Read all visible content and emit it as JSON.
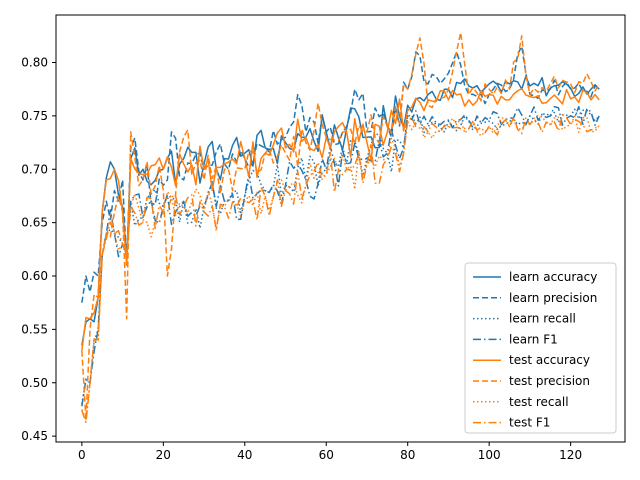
{
  "chart_data": {
    "type": "line",
    "title": "",
    "xlabel": "",
    "ylabel": "",
    "xlim": [
      -6.35,
      133.35
    ],
    "ylim": [
      0.4445,
      0.8445
    ],
    "xticks": [
      0,
      20,
      40,
      60,
      80,
      100,
      120
    ],
    "yticks": [
      0.45,
      0.5,
      0.55,
      0.6,
      0.65,
      0.7,
      0.75,
      0.8
    ],
    "legend": "lower-right",
    "grid": false,
    "colors": {
      "learn": "#1f77b4",
      "test": "#ff7f0e"
    },
    "anchors": {
      "learn accuracy": [
        [
          0,
          0.535
        ],
        [
          2,
          0.56
        ],
        [
          4,
          0.58
        ],
        [
          5,
          0.66
        ],
        [
          6,
          0.692
        ],
        [
          8,
          0.7
        ],
        [
          10,
          0.665
        ],
        [
          11,
          0.615
        ],
        [
          12,
          0.71
        ],
        [
          15,
          0.7
        ],
        [
          20,
          0.7
        ],
        [
          25,
          0.71
        ],
        [
          30,
          0.705
        ],
        [
          35,
          0.71
        ],
        [
          40,
          0.715
        ],
        [
          45,
          0.72
        ],
        [
          50,
          0.725
        ],
        [
          55,
          0.73
        ],
        [
          60,
          0.735
        ],
        [
          65,
          0.738
        ],
        [
          70,
          0.73
        ],
        [
          75,
          0.74
        ],
        [
          80,
          0.76
        ],
        [
          85,
          0.77
        ],
        [
          90,
          0.775
        ],
        [
          95,
          0.778
        ],
        [
          100,
          0.78
        ],
        [
          105,
          0.78
        ],
        [
          110,
          0.778
        ],
        [
          115,
          0.776
        ],
        [
          120,
          0.776
        ],
        [
          125,
          0.775
        ],
        [
          127,
          0.775
        ]
      ],
      "learn precision": [
        [
          0,
          0.575
        ],
        [
          1,
          0.6
        ],
        [
          2,
          0.585
        ],
        [
          4,
          0.6
        ],
        [
          5,
          0.65
        ],
        [
          6,
          0.67
        ],
        [
          8,
          0.68
        ],
        [
          10,
          0.69
        ],
        [
          11,
          0.61
        ],
        [
          12,
          0.72
        ],
        [
          15,
          0.69
        ],
        [
          20,
          0.685
        ],
        [
          22,
          0.735
        ],
        [
          25,
          0.69
        ],
        [
          30,
          0.7
        ],
        [
          35,
          0.705
        ],
        [
          40,
          0.71
        ],
        [
          45,
          0.72
        ],
        [
          50,
          0.73
        ],
        [
          54,
          0.76
        ],
        [
          55,
          0.735
        ],
        [
          60,
          0.735
        ],
        [
          65,
          0.74
        ],
        [
          68,
          0.765
        ],
        [
          70,
          0.735
        ],
        [
          75,
          0.74
        ],
        [
          80,
          0.775
        ],
        [
          82,
          0.81
        ],
        [
          85,
          0.78
        ],
        [
          90,
          0.79
        ],
        [
          92,
          0.81
        ],
        [
          95,
          0.77
        ],
        [
          100,
          0.77
        ],
        [
          105,
          0.775
        ],
        [
          108,
          0.815
        ],
        [
          110,
          0.77
        ],
        [
          115,
          0.775
        ],
        [
          120,
          0.775
        ],
        [
          127,
          0.775
        ]
      ],
      "learn recall": [
        [
          0,
          0.48
        ],
        [
          2,
          0.5
        ],
        [
          4,
          0.55
        ],
        [
          5,
          0.62
        ],
        [
          6,
          0.64
        ],
        [
          8,
          0.64
        ],
        [
          10,
          0.63
        ],
        [
          11,
          0.62
        ],
        [
          12,
          0.67
        ],
        [
          15,
          0.655
        ],
        [
          20,
          0.665
        ],
        [
          25,
          0.67
        ],
        [
          30,
          0.665
        ],
        [
          35,
          0.67
        ],
        [
          40,
          0.675
        ],
        [
          45,
          0.68
        ],
        [
          50,
          0.685
        ],
        [
          55,
          0.69
        ],
        [
          60,
          0.7
        ],
        [
          65,
          0.705
        ],
        [
          70,
          0.71
        ],
        [
          75,
          0.715
        ],
        [
          79,
          0.72
        ],
        [
          80,
          0.75
        ],
        [
          85,
          0.74
        ],
        [
          90,
          0.745
        ],
        [
          95,
          0.745
        ],
        [
          100,
          0.745
        ],
        [
          105,
          0.745
        ],
        [
          110,
          0.75
        ],
        [
          115,
          0.75
        ],
        [
          120,
          0.75
        ],
        [
          127,
          0.75
        ]
      ],
      "learn F1": [
        [
          0,
          0.478
        ],
        [
          2,
          0.5
        ],
        [
          4,
          0.55
        ],
        [
          5,
          0.62
        ],
        [
          6,
          0.64
        ],
        [
          8,
          0.64
        ],
        [
          10,
          0.63
        ],
        [
          11,
          0.62
        ],
        [
          12,
          0.67
        ],
        [
          15,
          0.655
        ],
        [
          20,
          0.665
        ],
        [
          25,
          0.67
        ],
        [
          30,
          0.665
        ],
        [
          35,
          0.67
        ],
        [
          40,
          0.675
        ],
        [
          45,
          0.68
        ],
        [
          50,
          0.685
        ],
        [
          55,
          0.69
        ],
        [
          60,
          0.7
        ],
        [
          65,
          0.705
        ],
        [
          70,
          0.71
        ],
        [
          75,
          0.715
        ],
        [
          79,
          0.72
        ],
        [
          80,
          0.75
        ],
        [
          85,
          0.742
        ],
        [
          90,
          0.746
        ],
        [
          95,
          0.746
        ],
        [
          100,
          0.746
        ],
        [
          105,
          0.748
        ],
        [
          110,
          0.75
        ],
        [
          115,
          0.75
        ],
        [
          120,
          0.75
        ],
        [
          127,
          0.75
        ]
      ],
      "test accuracy": [
        [
          0,
          0.53
        ],
        [
          2,
          0.56
        ],
        [
          4,
          0.58
        ],
        [
          5,
          0.66
        ],
        [
          6,
          0.69
        ],
        [
          8,
          0.7
        ],
        [
          10,
          0.66
        ],
        [
          11,
          0.61
        ],
        [
          12,
          0.71
        ],
        [
          15,
          0.695
        ],
        [
          20,
          0.7
        ],
        [
          25,
          0.705
        ],
        [
          30,
          0.7
        ],
        [
          35,
          0.705
        ],
        [
          40,
          0.71
        ],
        [
          45,
          0.715
        ],
        [
          50,
          0.72
        ],
        [
          55,
          0.73
        ],
        [
          60,
          0.73
        ],
        [
          65,
          0.735
        ],
        [
          70,
          0.725
        ],
        [
          75,
          0.735
        ],
        [
          80,
          0.755
        ],
        [
          85,
          0.765
        ],
        [
          90,
          0.765
        ],
        [
          95,
          0.765
        ],
        [
          100,
          0.77
        ],
        [
          105,
          0.765
        ],
        [
          110,
          0.768
        ],
        [
          115,
          0.766
        ],
        [
          120,
          0.766
        ],
        [
          125,
          0.765
        ],
        [
          127,
          0.765
        ]
      ],
      "test precision": [
        [
          0,
          0.53
        ],
        [
          1,
          0.465
        ],
        [
          2,
          0.55
        ],
        [
          4,
          0.58
        ],
        [
          5,
          0.62
        ],
        [
          6,
          0.64
        ],
        [
          8,
          0.66
        ],
        [
          10,
          0.66
        ],
        [
          11,
          0.56
        ],
        [
          12,
          0.735
        ],
        [
          15,
          0.69
        ],
        [
          20,
          0.68
        ],
        [
          21,
          0.6
        ],
        [
          25,
          0.73
        ],
        [
          30,
          0.69
        ],
        [
          35,
          0.7
        ],
        [
          40,
          0.7
        ],
        [
          45,
          0.715
        ],
        [
          50,
          0.715
        ],
        [
          55,
          0.725
        ],
        [
          58,
          0.762
        ],
        [
          60,
          0.73
        ],
        [
          65,
          0.735
        ],
        [
          70,
          0.735
        ],
        [
          75,
          0.74
        ],
        [
          80,
          0.775
        ],
        [
          83,
          0.823
        ],
        [
          85,
          0.76
        ],
        [
          90,
          0.775
        ],
        [
          93,
          0.828
        ],
        [
          95,
          0.77
        ],
        [
          100,
          0.775
        ],
        [
          105,
          0.775
        ],
        [
          108,
          0.825
        ],
        [
          110,
          0.77
        ],
        [
          115,
          0.78
        ],
        [
          120,
          0.78
        ],
        [
          125,
          0.782
        ],
        [
          127,
          0.78
        ]
      ],
      "test recall": [
        [
          0,
          0.475
        ],
        [
          1,
          0.465
        ],
        [
          2,
          0.5
        ],
        [
          4,
          0.54
        ],
        [
          5,
          0.62
        ],
        [
          6,
          0.635
        ],
        [
          8,
          0.64
        ],
        [
          10,
          0.63
        ],
        [
          11,
          0.62
        ],
        [
          12,
          0.665
        ],
        [
          15,
          0.65
        ],
        [
          20,
          0.66
        ],
        [
          25,
          0.665
        ],
        [
          30,
          0.66
        ],
        [
          35,
          0.665
        ],
        [
          40,
          0.67
        ],
        [
          45,
          0.675
        ],
        [
          50,
          0.68
        ],
        [
          55,
          0.685
        ],
        [
          60,
          0.695
        ],
        [
          65,
          0.7
        ],
        [
          70,
          0.705
        ],
        [
          75,
          0.71
        ],
        [
          79,
          0.715
        ],
        [
          80,
          0.745
        ],
        [
          85,
          0.735
        ],
        [
          90,
          0.74
        ],
        [
          95,
          0.738
        ],
        [
          100,
          0.74
        ],
        [
          105,
          0.74
        ],
        [
          110,
          0.742
        ],
        [
          115,
          0.742
        ],
        [
          120,
          0.742
        ],
        [
          127,
          0.741
        ]
      ],
      "test F1": [
        [
          0,
          0.474
        ],
        [
          1,
          0.463
        ],
        [
          2,
          0.5
        ],
        [
          4,
          0.54
        ],
        [
          5,
          0.62
        ],
        [
          6,
          0.635
        ],
        [
          8,
          0.64
        ],
        [
          10,
          0.63
        ],
        [
          11,
          0.62
        ],
        [
          12,
          0.665
        ],
        [
          15,
          0.65
        ],
        [
          20,
          0.66
        ],
        [
          25,
          0.665
        ],
        [
          30,
          0.66
        ],
        [
          35,
          0.665
        ],
        [
          40,
          0.67
        ],
        [
          45,
          0.675
        ],
        [
          50,
          0.68
        ],
        [
          55,
          0.685
        ],
        [
          60,
          0.695
        ],
        [
          65,
          0.7
        ],
        [
          70,
          0.705
        ],
        [
          75,
          0.71
        ],
        [
          79,
          0.715
        ],
        [
          80,
          0.745
        ],
        [
          85,
          0.735
        ],
        [
          90,
          0.74
        ],
        [
          95,
          0.738
        ],
        [
          100,
          0.74
        ],
        [
          105,
          0.74
        ],
        [
          110,
          0.742
        ],
        [
          115,
          0.742
        ],
        [
          120,
          0.742
        ],
        [
          127,
          0.741
        ]
      ]
    },
    "series": [
      {
        "name": "learn accuracy",
        "color": "#1f77b4",
        "style": "solid"
      },
      {
        "name": "learn precision",
        "color": "#1f77b4",
        "style": "dashed"
      },
      {
        "name": "learn recall",
        "color": "#1f77b4",
        "style": "dotted"
      },
      {
        "name": "learn F1",
        "color": "#1f77b4",
        "style": "dashdot"
      },
      {
        "name": "test accuracy",
        "color": "#ff7f0e",
        "style": "solid"
      },
      {
        "name": "test precision",
        "color": "#ff7f0e",
        "style": "dashed"
      },
      {
        "name": "test recall",
        "color": "#ff7f0e",
        "style": "dotted"
      },
      {
        "name": "test F1",
        "color": "#ff7f0e",
        "style": "dashdot"
      }
    ]
  }
}
